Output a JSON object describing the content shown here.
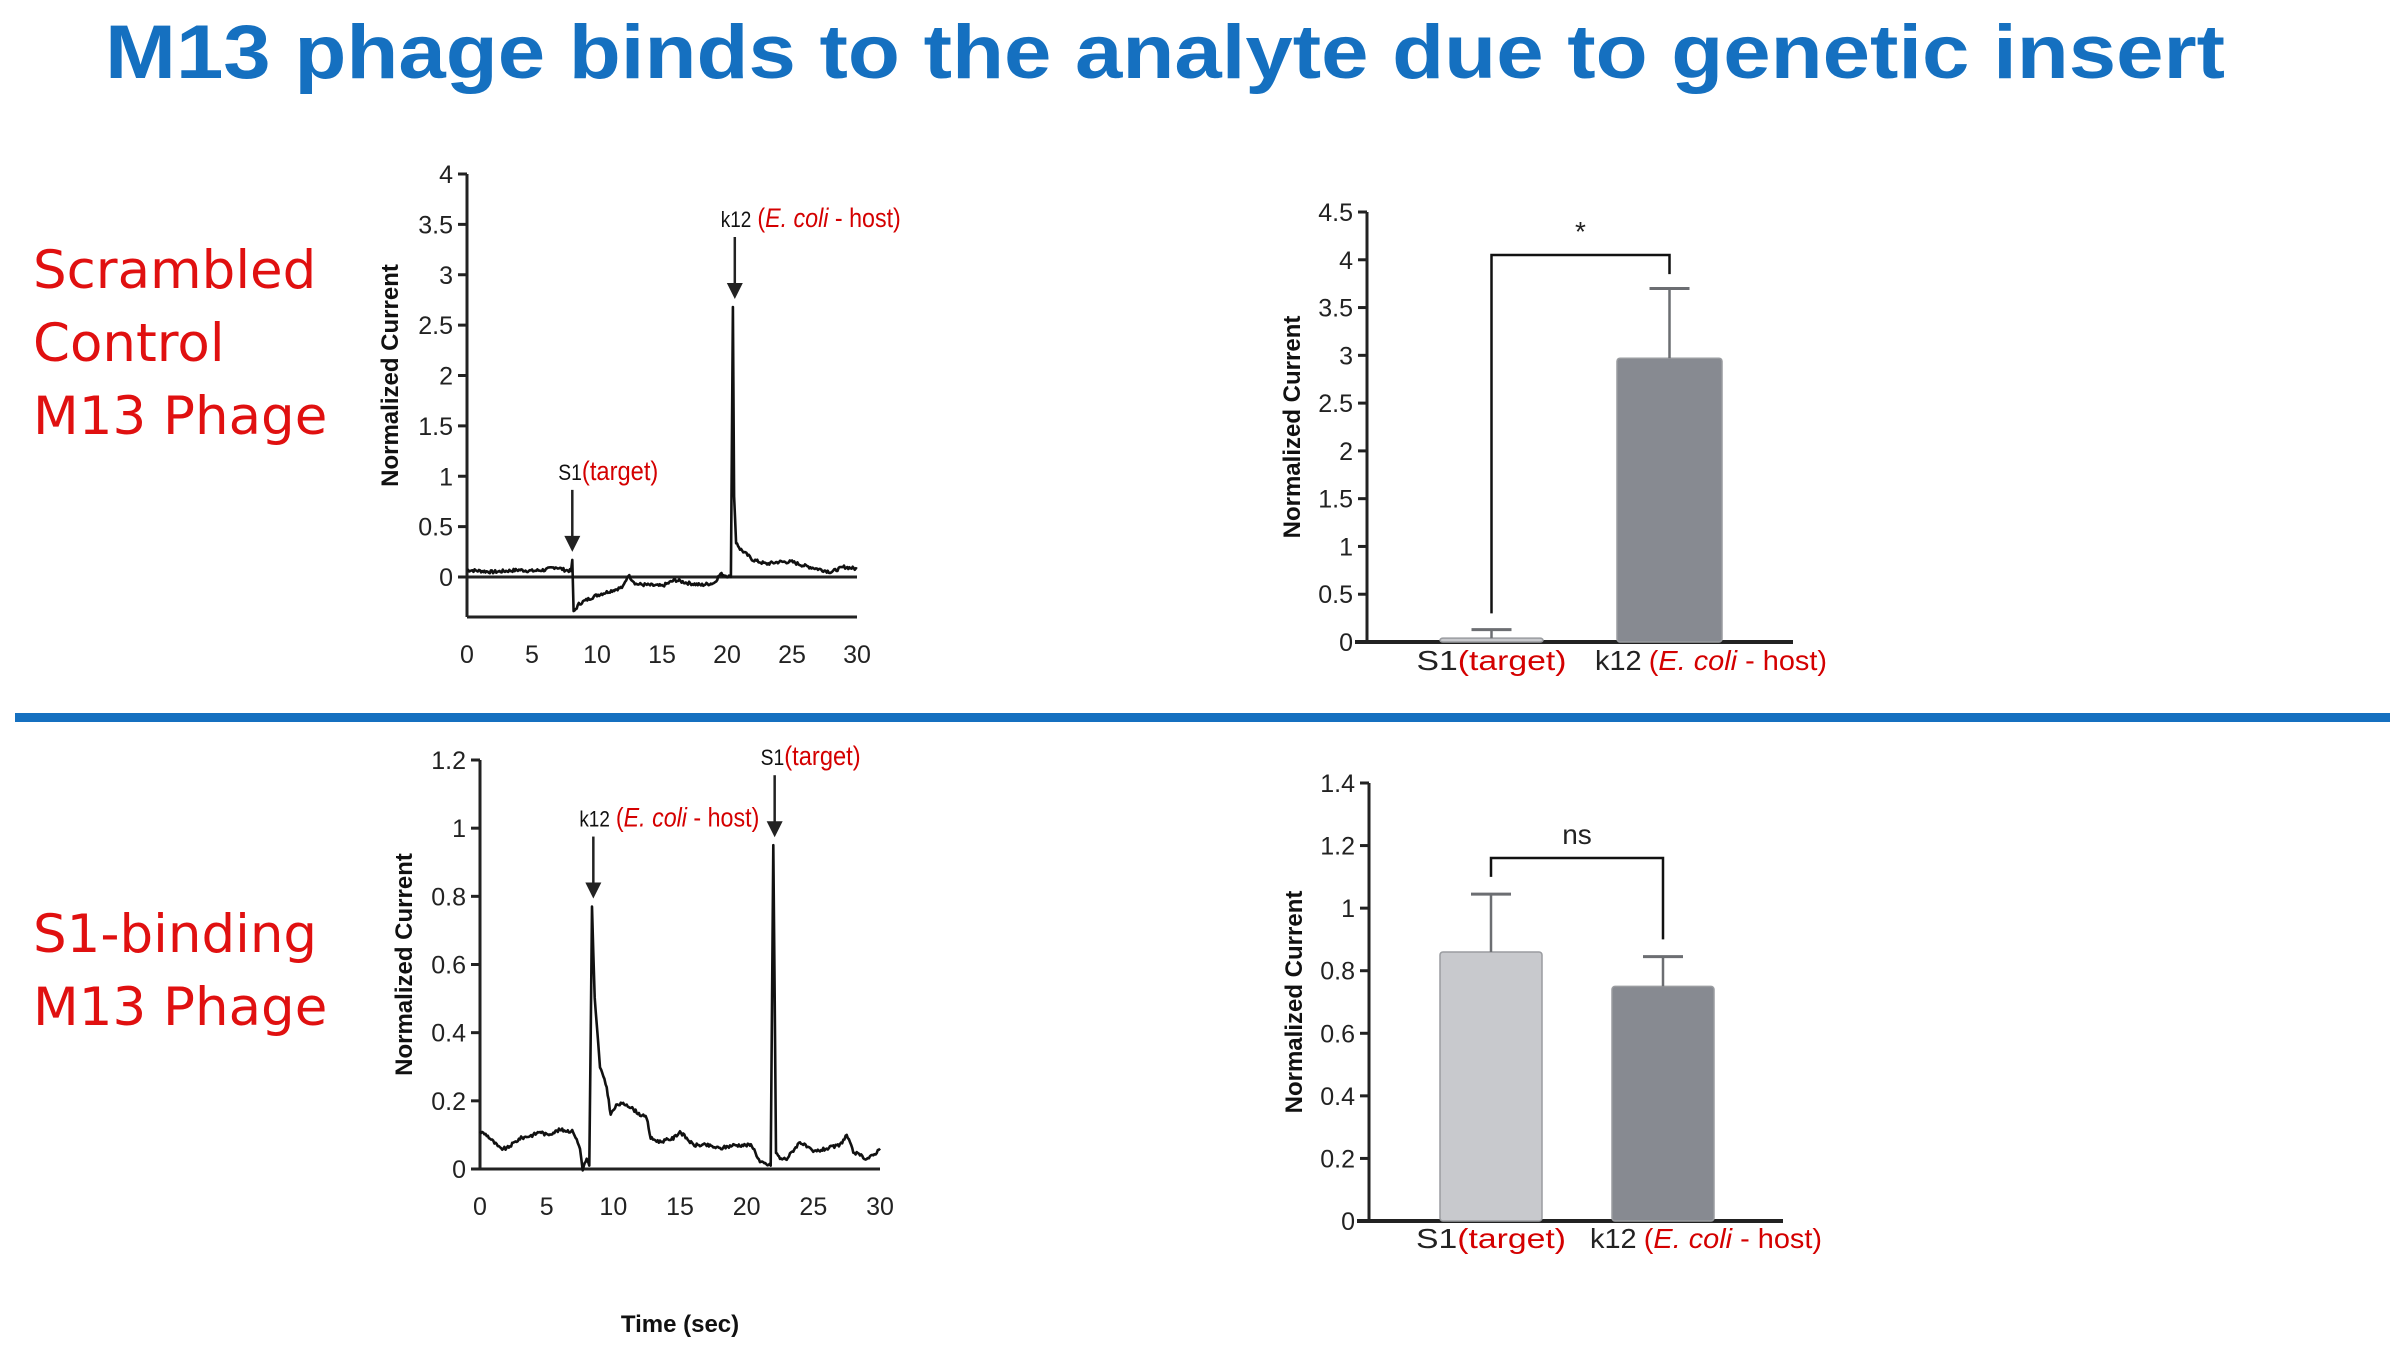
{
  "title": "M13 phage binds to the analyte due to genetic insert",
  "rows": [
    {
      "label_lines": [
        "Scrambled",
        "Control",
        "M13 Phage"
      ]
    },
    {
      "label_lines": [
        "S1-binding",
        "M13 Phage"
      ]
    }
  ],
  "colors": {
    "title": "#1570c0",
    "divider": "#1570c0",
    "accent_red": "#d40000",
    "bar_light": "#c8c9cd",
    "bar_dark": "#878a91",
    "line": "#111111"
  },
  "chart_data": [
    {
      "type": "line",
      "ylabel": "Normalized Current",
      "xlabel": "",
      "xlim": [
        0,
        30
      ],
      "ylim": [
        -0.4,
        4
      ],
      "xticks": [
        "0",
        "5",
        "10",
        "15",
        "20",
        "25",
        "30"
      ],
      "yticks": [
        "0",
        "0.5",
        "1",
        "1.5",
        "2",
        "2.5",
        "3",
        "3.5",
        "4"
      ],
      "series": [
        {
          "name": "trace",
          "x": [
            0,
            1,
            2,
            3,
            4,
            5,
            6,
            6.8,
            7.5,
            8,
            8.1,
            8.2,
            8.6,
            9,
            10,
            11,
            12,
            12.4,
            13,
            14,
            15,
            16,
            17,
            18,
            19,
            19.5,
            20.3,
            20.45,
            20.55,
            20.7,
            21,
            22,
            23,
            24,
            25,
            26,
            27,
            28,
            29,
            30
          ],
          "y": [
            0.07,
            0.06,
            0.05,
            0.06,
            0.07,
            0.06,
            0.07,
            0.1,
            0.07,
            0.06,
            0.17,
            -0.35,
            -0.27,
            -0.24,
            -0.18,
            -0.14,
            -0.1,
            0.02,
            -0.07,
            -0.08,
            -0.09,
            -0.03,
            -0.06,
            -0.08,
            -0.06,
            0.03,
            0.0,
            2.68,
            0.8,
            0.35,
            0.28,
            0.17,
            0.13,
            0.15,
            0.15,
            0.11,
            0.08,
            0.05,
            0.1,
            0.08
          ]
        }
      ],
      "annotations": [
        {
          "x": 8.1,
          "prefix": "S1",
          "text": "(target)",
          "italic": ""
        },
        {
          "x": 20.6,
          "prefix": "k12",
          "text_open": "(",
          "italic": "E. coli",
          "text": " - host)"
        }
      ]
    },
    {
      "type": "bar",
      "ylabel": "Normalized Current",
      "ylim": [
        0,
        4.5
      ],
      "yticks": [
        "0",
        "0.5",
        "1",
        "1.5",
        "2",
        "2.5",
        "3",
        "3.5",
        "4",
        "4.5"
      ],
      "categories": [
        {
          "prefix": "S1",
          "text": "(target)",
          "italic": ""
        },
        {
          "prefix": "k12",
          "text_open": "(",
          "italic": "E. coli",
          "text": " - host)"
        }
      ],
      "values": [
        0.04,
        2.97
      ],
      "errors": [
        0.09,
        0.73
      ],
      "significance": "*"
    },
    {
      "type": "line",
      "ylabel": "Normalized Current",
      "xlabel": "Time (sec)",
      "xlim": [
        0,
        30
      ],
      "ylim": [
        0,
        1.2
      ],
      "xticks": [
        "0",
        "5",
        "10",
        "15",
        "20",
        "25",
        "30"
      ],
      "yticks": [
        "0",
        "0.2",
        "0.4",
        "0.6",
        "0.8",
        "1",
        "1.2"
      ],
      "series": [
        {
          "name": "trace",
          "x": [
            0,
            0.5,
            1.5,
            2,
            3,
            4,
            4.5,
            5,
            6,
            7,
            7.5,
            7.7,
            8,
            8.2,
            8.4,
            8.6,
            9,
            9.5,
            9.8,
            10.3,
            11,
            12,
            12.5,
            12.8,
            13.5,
            14.5,
            15,
            16,
            17,
            18,
            19,
            20,
            20.4,
            21,
            21.8,
            22,
            22.2,
            22.5,
            23,
            24,
            25,
            26,
            27,
            27.5,
            28,
            29,
            29.5,
            30
          ],
          "y": [
            0.11,
            0.1,
            0.06,
            0.06,
            0.09,
            0.1,
            0.11,
            0.1,
            0.115,
            0.11,
            0.06,
            0.0,
            0.03,
            0.01,
            0.77,
            0.5,
            0.3,
            0.24,
            0.16,
            0.19,
            0.19,
            0.16,
            0.15,
            0.09,
            0.08,
            0.09,
            0.11,
            0.07,
            0.07,
            0.06,
            0.07,
            0.07,
            0.07,
            0.02,
            0.01,
            0.95,
            0.05,
            0.03,
            0.03,
            0.08,
            0.05,
            0.06,
            0.07,
            0.1,
            0.05,
            0.03,
            0.04,
            0.06
          ]
        }
      ],
      "annotations": [
        {
          "x": 8.5,
          "prefix": "k12",
          "text_open": "(",
          "italic": "E. coli",
          "text": " - host)"
        },
        {
          "x": 22.1,
          "prefix": "S1",
          "text": "(target)",
          "italic": ""
        }
      ]
    },
    {
      "type": "bar",
      "ylabel": "Normalized Current",
      "ylim": [
        0,
        1.4
      ],
      "yticks": [
        "0",
        "0.2",
        "0.4",
        "0.6",
        "0.8",
        "1",
        "1.2",
        "1.4"
      ],
      "categories": [
        {
          "prefix": "S1",
          "text": "(target)",
          "italic": ""
        },
        {
          "prefix": "k12",
          "text_open": "(",
          "italic": "E. coli",
          "text": " - host)"
        }
      ],
      "values": [
        0.86,
        0.75
      ],
      "errors": [
        0.185,
        0.095
      ],
      "significance": "ns"
    }
  ]
}
